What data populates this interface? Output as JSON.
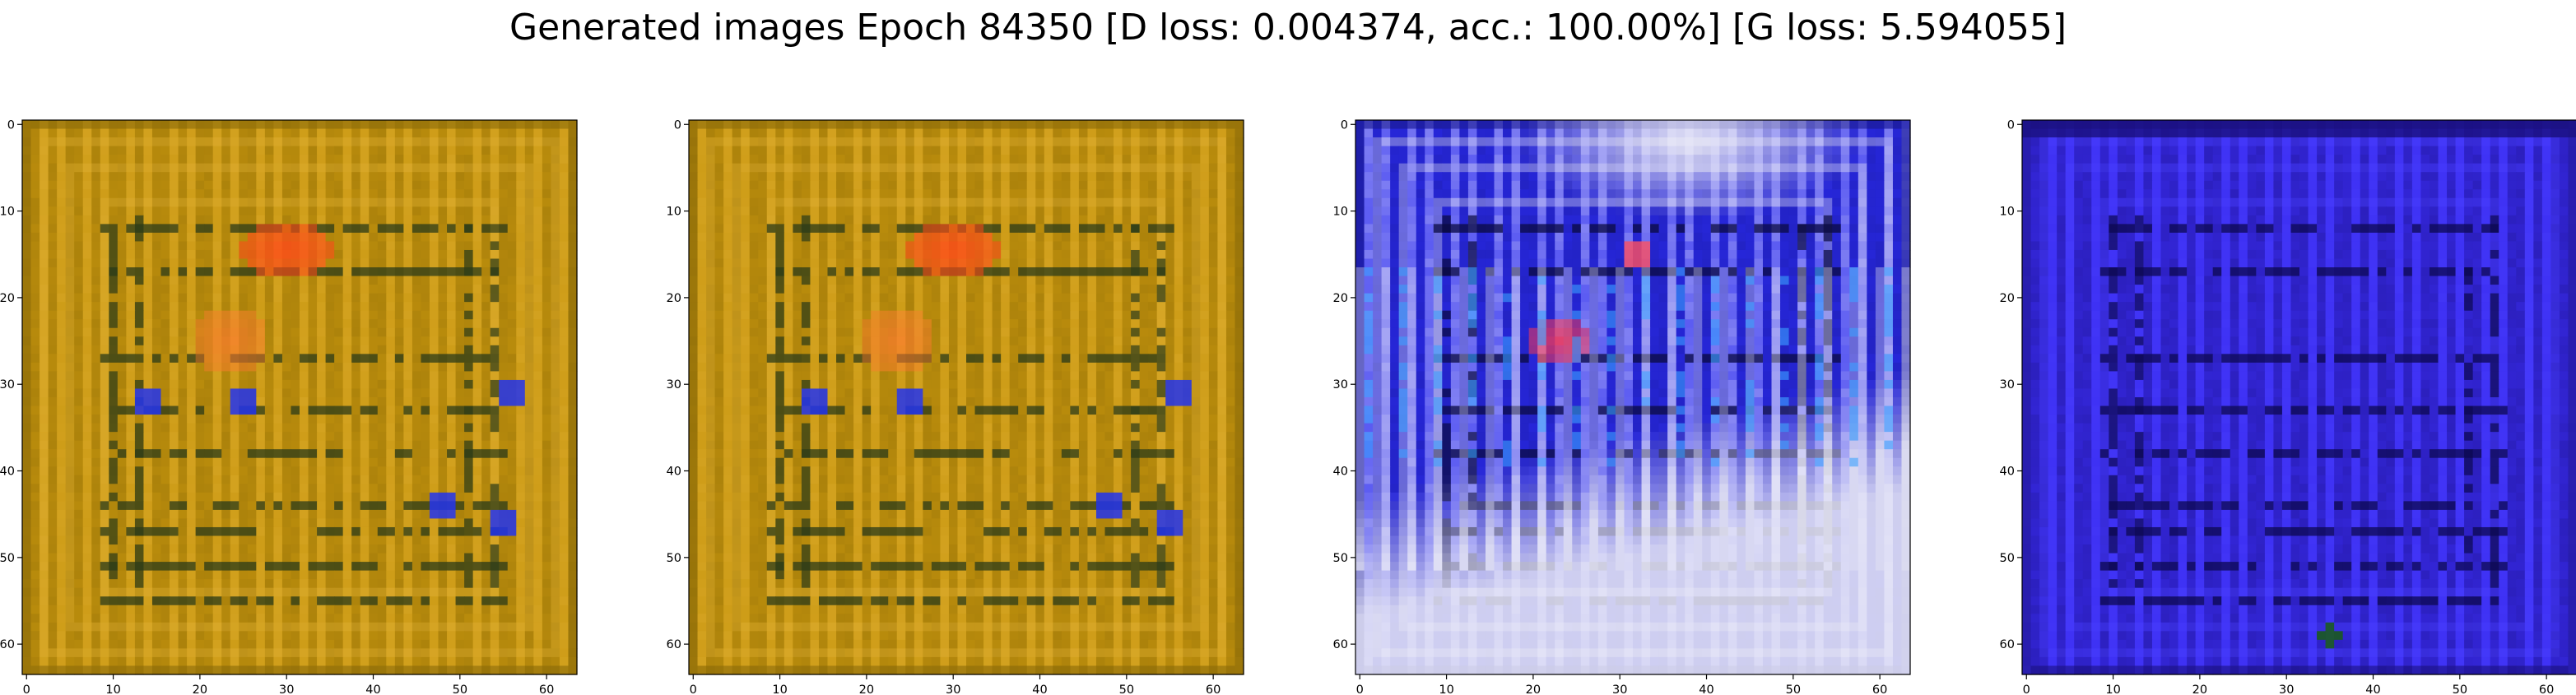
{
  "title": "Generated images Epoch 84350 [D loss: 0.004374, acc.: 100.00%] [G loss: 5.594055]",
  "chart_data": [
    {
      "type": "heatmap",
      "description": "generated image sample 1",
      "palette": {
        "base": "#c8960e",
        "light": "#e0b035",
        "dark": "#8a6a08",
        "lines": "#2a3a18",
        "blob": "#ff4a1a",
        "blob2": "#ff7a30",
        "accent": "#2233ee"
      },
      "x_ticks": [
        0,
        10,
        20,
        30,
        40,
        50,
        60
      ],
      "y_ticks": [
        0,
        10,
        20,
        30,
        40,
        50,
        60
      ],
      "xlim": [
        0,
        63
      ],
      "ylim": [
        63,
        0
      ],
      "grid": false
    },
    {
      "type": "heatmap",
      "description": "generated image sample 2",
      "palette": {
        "base": "#c8960e",
        "light": "#e0b035",
        "dark": "#8a6a08",
        "lines": "#2a3a18",
        "blob": "#ff4a1a",
        "blob2": "#ff7a30",
        "accent": "#2233ee"
      },
      "x_ticks": [
        0,
        10,
        20,
        30,
        40,
        50,
        60
      ],
      "y_ticks": [
        0,
        10,
        20,
        30,
        40,
        50,
        60
      ],
      "xlim": [
        0,
        63
      ],
      "ylim": [
        63,
        0
      ],
      "grid": false
    },
    {
      "type": "heatmap",
      "description": "generated image sample 3",
      "palette": {
        "base": "#2a2af0",
        "light": "#ececf6",
        "dark": "#1a1a90",
        "lines": "#0a0a40",
        "blob": "#ff3a50",
        "blob2": "#ff5060",
        "accent": "#3aa0ff"
      },
      "x_ticks": [
        0,
        10,
        20,
        30,
        40,
        50,
        60
      ],
      "y_ticks": [
        0,
        10,
        20,
        30,
        40,
        50,
        60
      ],
      "xlim": [
        0,
        63
      ],
      "ylim": [
        63,
        0
      ],
      "grid": false
    },
    {
      "type": "heatmap",
      "description": "generated image sample 4",
      "palette": {
        "base": "#3a2cf0",
        "light": "#4a40ff",
        "dark": "#1a1080",
        "lines": "#0c0850",
        "blob": "#3a2cf0",
        "blob2": "#3a2cf0",
        "accent": "#1a5a20"
      },
      "x_ticks": [
        0,
        10,
        20,
        30,
        40,
        50,
        60
      ],
      "y_ticks": [
        0,
        10,
        20,
        30,
        40,
        50,
        60
      ],
      "xlim": [
        0,
        63
      ],
      "ylim": [
        63,
        0
      ],
      "grid": false
    }
  ]
}
